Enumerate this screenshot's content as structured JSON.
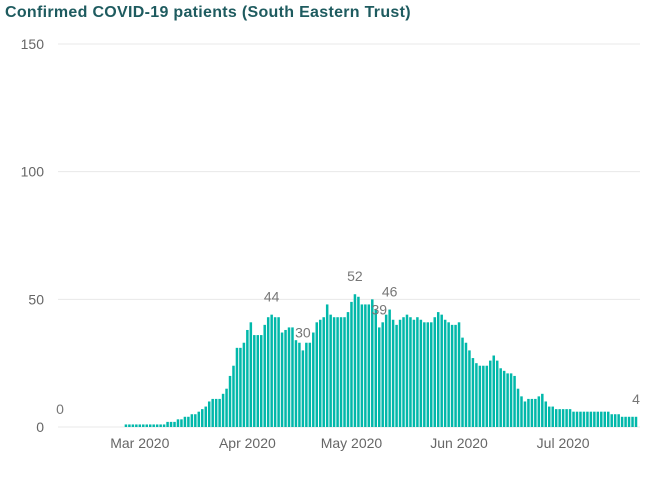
{
  "colors": {
    "bars": "#01B8AA",
    "title": "#1E5B5F",
    "axis_labels": "#666666",
    "data_labels": "#777777",
    "gridlines": "#E8E8E8"
  },
  "chart_data": {
    "type": "bar",
    "title": "Confirmed COVID-19 patients (South Eastern Trust)",
    "ylim": [
      0,
      150
    ],
    "y_ticks": [
      0,
      50,
      100,
      150
    ],
    "x_tick_labels": [
      "Mar 2020",
      "Apr 2020",
      "May 2020",
      "Jun 2020",
      "Jul 2020"
    ],
    "grid": true,
    "x": [
      "2020-02-07",
      "2020-02-08",
      "2020-02-09",
      "2020-02-10",
      "2020-02-11",
      "2020-02-12",
      "2020-02-13",
      "2020-02-14",
      "2020-02-15",
      "2020-02-16",
      "2020-02-17",
      "2020-02-18",
      "2020-02-19",
      "2020-02-20",
      "2020-02-21",
      "2020-02-22",
      "2020-02-23",
      "2020-02-24",
      "2020-02-25",
      "2020-02-26",
      "2020-02-27",
      "2020-02-28",
      "2020-02-29",
      "2020-03-01",
      "2020-03-02",
      "2020-03-03",
      "2020-03-04",
      "2020-03-05",
      "2020-03-06",
      "2020-03-07",
      "2020-03-08",
      "2020-03-09",
      "2020-03-10",
      "2020-03-11",
      "2020-03-12",
      "2020-03-13",
      "2020-03-14",
      "2020-03-15",
      "2020-03-16",
      "2020-03-17",
      "2020-03-18",
      "2020-03-19",
      "2020-03-20",
      "2020-03-21",
      "2020-03-22",
      "2020-03-23",
      "2020-03-24",
      "2020-03-25",
      "2020-03-26",
      "2020-03-27",
      "2020-03-28",
      "2020-03-29",
      "2020-03-30",
      "2020-03-31",
      "2020-04-01",
      "2020-04-02",
      "2020-04-03",
      "2020-04-04",
      "2020-04-05",
      "2020-04-06",
      "2020-04-07",
      "2020-04-08",
      "2020-04-09",
      "2020-04-10",
      "2020-04-11",
      "2020-04-12",
      "2020-04-13",
      "2020-04-14",
      "2020-04-15",
      "2020-04-16",
      "2020-04-17",
      "2020-04-18",
      "2020-04-19",
      "2020-04-20",
      "2020-04-21",
      "2020-04-22",
      "2020-04-23",
      "2020-04-24",
      "2020-04-25",
      "2020-04-26",
      "2020-04-27",
      "2020-04-28",
      "2020-04-29",
      "2020-04-30",
      "2020-05-01",
      "2020-05-02",
      "2020-05-03",
      "2020-05-04",
      "2020-05-05",
      "2020-05-06",
      "2020-05-07",
      "2020-05-08",
      "2020-05-09",
      "2020-05-10",
      "2020-05-11",
      "2020-05-12",
      "2020-05-13",
      "2020-05-14",
      "2020-05-15",
      "2020-05-16",
      "2020-05-17",
      "2020-05-18",
      "2020-05-19",
      "2020-05-20",
      "2020-05-21",
      "2020-05-22",
      "2020-05-23",
      "2020-05-24",
      "2020-05-25",
      "2020-05-26",
      "2020-05-27",
      "2020-05-28",
      "2020-05-29",
      "2020-05-30",
      "2020-05-31",
      "2020-06-01",
      "2020-06-02",
      "2020-06-03",
      "2020-06-04",
      "2020-06-05",
      "2020-06-06",
      "2020-06-07",
      "2020-06-08",
      "2020-06-09",
      "2020-06-10",
      "2020-06-11",
      "2020-06-12",
      "2020-06-13",
      "2020-06-14",
      "2020-06-15",
      "2020-06-16",
      "2020-06-17",
      "2020-06-18",
      "2020-06-19",
      "2020-06-20",
      "2020-06-21",
      "2020-06-22",
      "2020-06-23",
      "2020-06-24",
      "2020-06-25",
      "2020-06-26",
      "2020-06-27",
      "2020-06-28",
      "2020-06-29",
      "2020-06-30",
      "2020-07-01",
      "2020-07-02",
      "2020-07-03",
      "2020-07-04",
      "2020-07-05",
      "2020-07-06",
      "2020-07-07",
      "2020-07-08",
      "2020-07-09",
      "2020-07-10",
      "2020-07-11",
      "2020-07-12",
      "2020-07-13",
      "2020-07-14",
      "2020-07-15",
      "2020-07-16",
      "2020-07-17",
      "2020-07-18",
      "2020-07-19",
      "2020-07-20",
      "2020-07-21",
      "2020-07-22"
    ],
    "values": [
      0,
      0,
      0,
      0,
      0,
      0,
      0,
      0,
      0,
      0,
      0,
      0,
      0,
      0,
      0,
      0,
      0,
      0,
      0,
      1,
      1,
      1,
      1,
      1,
      1,
      1,
      1,
      1,
      1,
      1,
      1,
      2,
      2,
      2,
      3,
      3,
      4,
      4,
      5,
      5,
      6,
      7,
      8,
      10,
      11,
      11,
      11,
      13,
      15,
      20,
      24,
      31,
      31,
      33,
      38,
      41,
      36,
      36,
      36,
      40,
      43,
      44,
      43,
      43,
      37,
      38,
      39,
      39,
      34,
      33,
      30,
      33,
      33,
      37,
      41,
      42,
      43,
      48,
      44,
      43,
      43,
      43,
      43,
      45,
      49,
      52,
      51,
      48,
      48,
      48,
      50,
      46,
      39,
      41,
      44,
      46,
      42,
      40,
      42,
      43,
      44,
      43,
      42,
      43,
      42,
      41,
      41,
      41,
      43,
      45,
      44,
      42,
      41,
      40,
      40,
      41,
      35,
      33,
      30,
      27,
      25,
      24,
      24,
      24,
      26,
      28,
      26,
      23,
      22,
      21,
      21,
      20,
      15,
      12,
      10,
      11,
      11,
      11,
      12,
      13,
      10,
      8,
      8,
      7,
      7,
      7,
      7,
      7,
      6,
      6,
      6,
      6,
      6,
      6,
      6,
      6,
      6,
      6,
      6,
      5,
      5,
      5,
      4,
      4,
      4,
      4,
      4
    ],
    "data_labels": [
      {
        "x": "2020-02-07",
        "value": 0
      },
      {
        "x": "2020-04-08",
        "value": 44
      },
      {
        "x": "2020-04-17",
        "value": 30
      },
      {
        "x": "2020-05-02",
        "value": 52
      },
      {
        "x": "2020-05-09",
        "value": 39
      },
      {
        "x": "2020-05-12",
        "value": 46
      },
      {
        "x": "2020-07-22",
        "value": 4
      }
    ]
  }
}
